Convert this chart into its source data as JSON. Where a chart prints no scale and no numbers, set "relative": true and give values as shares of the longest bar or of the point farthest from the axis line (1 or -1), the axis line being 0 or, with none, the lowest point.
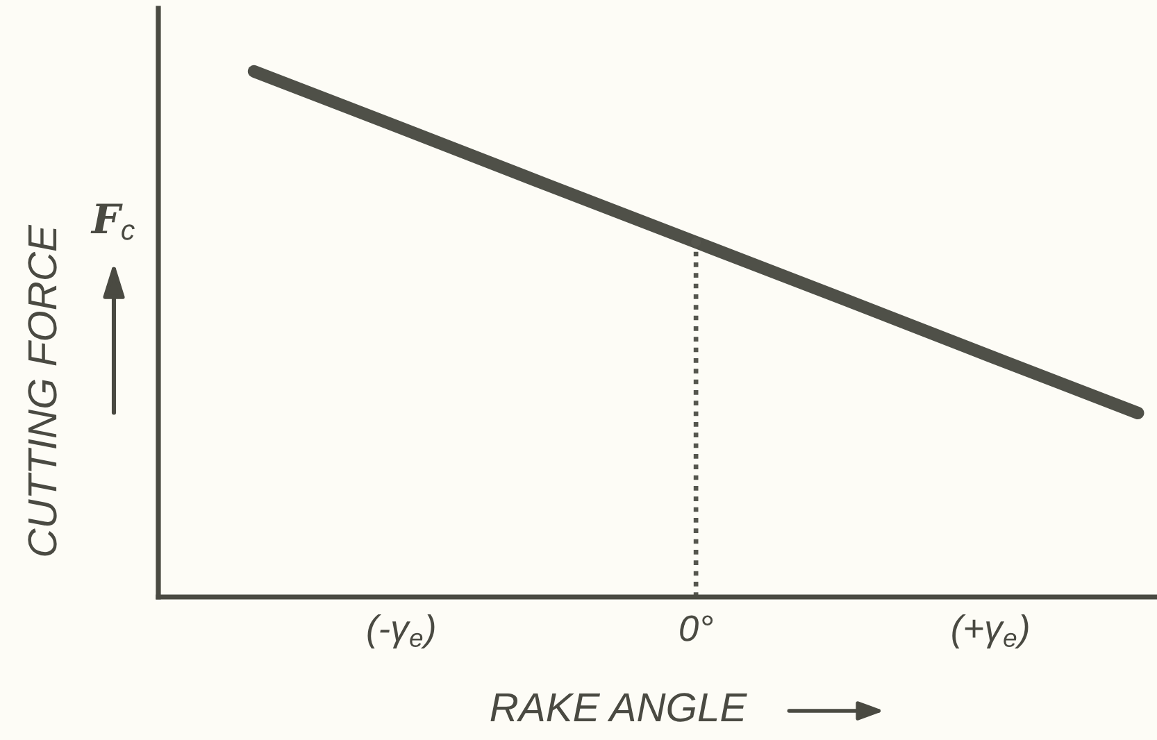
{
  "chart_data": {
    "type": "line",
    "relative": true,
    "xlabel": "RAKE ANGLE",
    "ylabel": "CUTTING FORCE",
    "annotations": [
      "F$_{c}$"
    ],
    "categories": [
      null,
      "(-γ$_{e}$)",
      null,
      "0°",
      null,
      "(+γ$_{e}$)",
      null
    ],
    "tick_labels": "x",
    "series": [
      {
        "color": "#4f5048",
        "values": [
          1,
          0.892,
          0.783,
          0.675,
          0.567,
          0.458,
          0.35
        ]
      },
      {
        "type": "lollipop",
        "color": "#55564e",
        "values": [
          null,
          null,
          null,
          0.675,
          null,
          null,
          null
        ],
        "line_style": "dotted",
        "marker": "circle"
      }
    ]
  }
}
